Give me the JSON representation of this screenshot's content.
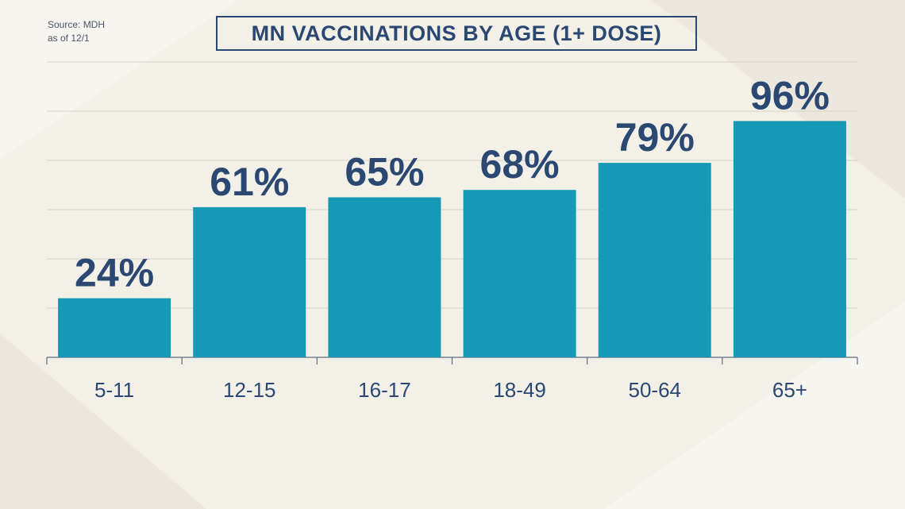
{
  "source": {
    "line1": "Source: MDH",
    "line2": "as of 12/1"
  },
  "colors": {
    "bar": "#1599b4",
    "label": "#2a4872",
    "tick_text": "#2a4872",
    "grid": "#d6d2c8",
    "axis": "#5b6b82",
    "background": "#f3f0e8"
  },
  "chart_data": {
    "type": "bar",
    "title": "MN VACCINATIONS BY AGE (1+ DOSE)",
    "categories": [
      "5-11",
      "12-15",
      "16-17",
      "18-49",
      "50-64",
      "65+"
    ],
    "values": [
      24,
      61,
      65,
      68,
      79,
      96
    ],
    "data_labels": [
      "24%",
      "61%",
      "65%",
      "68%",
      "79%",
      "96%"
    ],
    "xlabel": "",
    "ylabel": "",
    "ylim": [
      0,
      120
    ],
    "grid": true,
    "legend": "none"
  }
}
